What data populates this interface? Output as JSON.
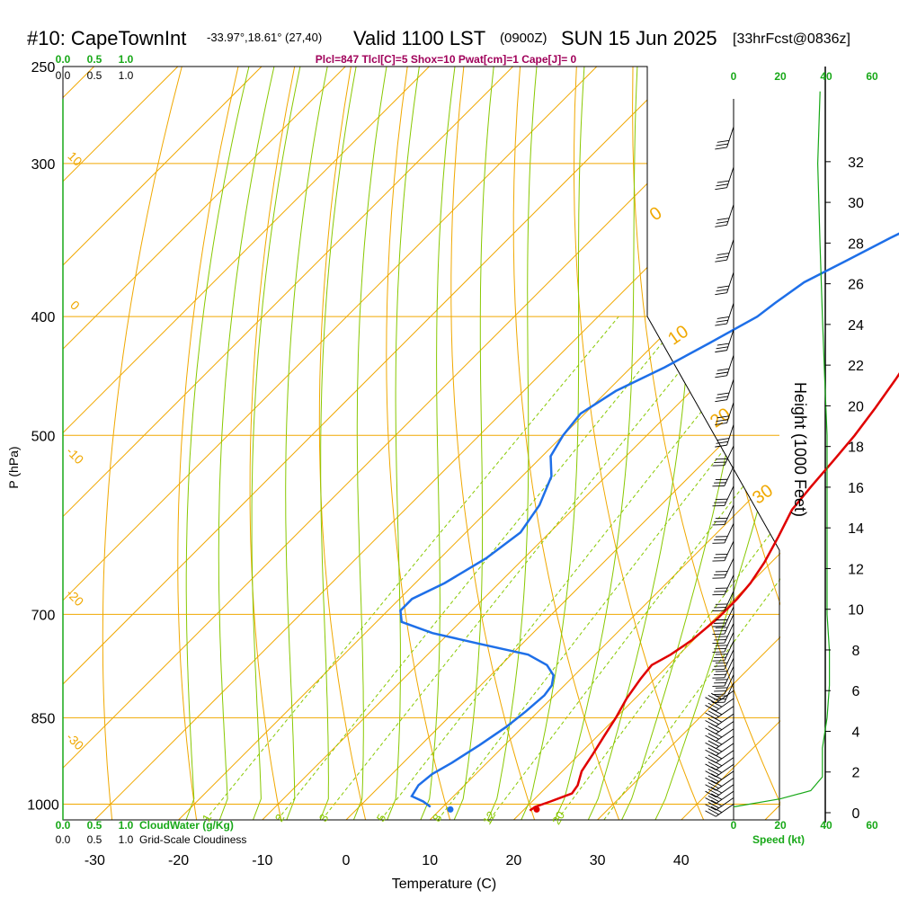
{
  "header": {
    "station": "#10: CapeTownInt",
    "coords": "-33.97°,18.61° (27,40)",
    "valid": "Valid 1100 LST",
    "utc": "(0900Z)",
    "date": "SUN 15 Jun 2025",
    "forecast": "[33hrFcst@0836z]",
    "indices": "Plcl=847 Tlcl[C]=5 Shox=10 Pwat[cm]=1 Cape[J]= 0"
  },
  "colors": {
    "isotherm": "#f0a800",
    "dry_adiabat": "#f0a800",
    "moist_adiabat": "#88c800",
    "mixing_ratio": "#88c800",
    "temperature": "#e00000",
    "dewpoint": "#1e6fe8",
    "green_label": "#18a818",
    "indices": "#a0005a"
  },
  "chart_data": {
    "type": "line",
    "title": "#10: CapeTownInt",
    "xlabel": "Temperature (C)",
    "ylabel": "P (hPa)",
    "y2label": "Height (1000 Feet)",
    "xlim": [
      -35,
      45
    ],
    "ylim_hpa": [
      1030,
      250
    ],
    "log_pressure_axis": true,
    "x_ticks": [
      "-30",
      "-20",
      "-10",
      "0",
      "10",
      "20",
      "30",
      "40"
    ],
    "pressure_ticks": [
      "250",
      "300",
      "400",
      "500",
      "700",
      "850",
      "1000"
    ],
    "height_ticks": [
      "0",
      "2",
      "4",
      "6",
      "8",
      "10",
      "12",
      "14",
      "16",
      "18",
      "20",
      "22",
      "24",
      "26",
      "28",
      "30",
      "32"
    ],
    "temperature_profile": [
      [
        1012,
        20.8
      ],
      [
        1005,
        21.0
      ],
      [
        995,
        22.2
      ],
      [
        980,
        23.8
      ],
      [
        965,
        23.5
      ],
      [
        940,
        22.3
      ],
      [
        910,
        21.6
      ],
      [
        880,
        20.8
      ],
      [
        850,
        20.0
      ],
      [
        820,
        19.0
      ],
      [
        790,
        18.3
      ],
      [
        770,
        18.0
      ],
      [
        755,
        19.0
      ],
      [
        735,
        19.8
      ],
      [
        705,
        20.3
      ],
      [
        680,
        20.3
      ],
      [
        660,
        20.0
      ],
      [
        635,
        19.2
      ],
      [
        605,
        17.8
      ],
      [
        575,
        16.2
      ],
      [
        550,
        15.7
      ],
      [
        525,
        15.3
      ],
      [
        500,
        14.8
      ],
      [
        475,
        14.0
      ],
      [
        450,
        13.0
      ],
      [
        425,
        11.8
      ],
      [
        400,
        10.5
      ],
      [
        380,
        9.3
      ],
      [
        360,
        7.9
      ],
      [
        340,
        6.1
      ],
      [
        320,
        4.2
      ],
      [
        300,
        2.2
      ],
      [
        285,
        0.6
      ],
      [
        270,
        -1.5
      ],
      [
        262,
        -3.1
      ]
    ],
    "dewpoint_profile": [
      [
        1005,
        8.5
      ],
      [
        995,
        7.0
      ],
      [
        985,
        5.0
      ],
      [
        965,
        4.5
      ],
      [
        945,
        4.8
      ],
      [
        925,
        5.8
      ],
      [
        895,
        7.0
      ],
      [
        865,
        8.0
      ],
      [
        840,
        8.5
      ],
      [
        815,
        8.8
      ],
      [
        800,
        8.5
      ],
      [
        785,
        7.5
      ],
      [
        770,
        5.5
      ],
      [
        755,
        2.0
      ],
      [
        740,
        -5.0
      ],
      [
        725,
        -12.0
      ],
      [
        710,
        -17.0
      ],
      [
        695,
        -18.5
      ],
      [
        680,
        -18.5
      ],
      [
        660,
        -16.5
      ],
      [
        630,
        -14.5
      ],
      [
        600,
        -13.5
      ],
      [
        570,
        -14.5
      ],
      [
        540,
        -16.5
      ],
      [
        520,
        -19.0
      ],
      [
        500,
        -20.0
      ],
      [
        480,
        -20.5
      ],
      [
        460,
        -19.0
      ],
      [
        440,
        -16.0
      ],
      [
        420,
        -13.5
      ],
      [
        400,
        -11.0
      ],
      [
        390,
        -10.5
      ],
      [
        375,
        -9.5
      ],
      [
        360,
        -7.0
      ],
      [
        345,
        -4.5
      ],
      [
        330,
        -1.5
      ],
      [
        315,
        -1.5
      ],
      [
        300,
        -1.5
      ],
      [
        285,
        -3.5
      ],
      [
        270,
        -5.0
      ],
      [
        262,
        -5.5
      ]
    ],
    "surface_temperature_c": 21.5,
    "surface_dewpoint_c": 11.2,
    "surface_pressure_hpa": 1010,
    "dry_adiabat_labels": [
      "0",
      "10",
      "20",
      "30"
    ],
    "isotherm_side_labels": [
      "10",
      "0",
      "-10",
      "-20",
      "-30"
    ],
    "mixing_ratio_labels": [
      "1",
      "2",
      "3",
      "5",
      "8",
      "12",
      "20"
    ],
    "moist_adiabat_labels": [
      "0",
      "10",
      "20"
    ],
    "wind_speed_ticks": [
      "0",
      "20",
      "40",
      "60"
    ],
    "cloud_scale_ticks": [
      "0.0",
      "0.5",
      "1.0"
    ],
    "cloudwater_label": "CloudWater (g/Kg)",
    "cloudiness_label": "Grid-Scale Cloudiness",
    "speed_label": "Speed (kt)",
    "wind_speed_profile": [
      [
        1005,
        0
      ],
      [
        990,
        20
      ],
      [
        975,
        33
      ],
      [
        950,
        38
      ],
      [
        900,
        38
      ],
      [
        850,
        40
      ],
      [
        800,
        41
      ],
      [
        750,
        41
      ],
      [
        700,
        40
      ],
      [
        650,
        40
      ],
      [
        600,
        40
      ],
      [
        550,
        40
      ],
      [
        500,
        40
      ],
      [
        450,
        39
      ],
      [
        400,
        38
      ],
      [
        350,
        37
      ],
      [
        300,
        36
      ],
      [
        262,
        37
      ]
    ]
  }
}
